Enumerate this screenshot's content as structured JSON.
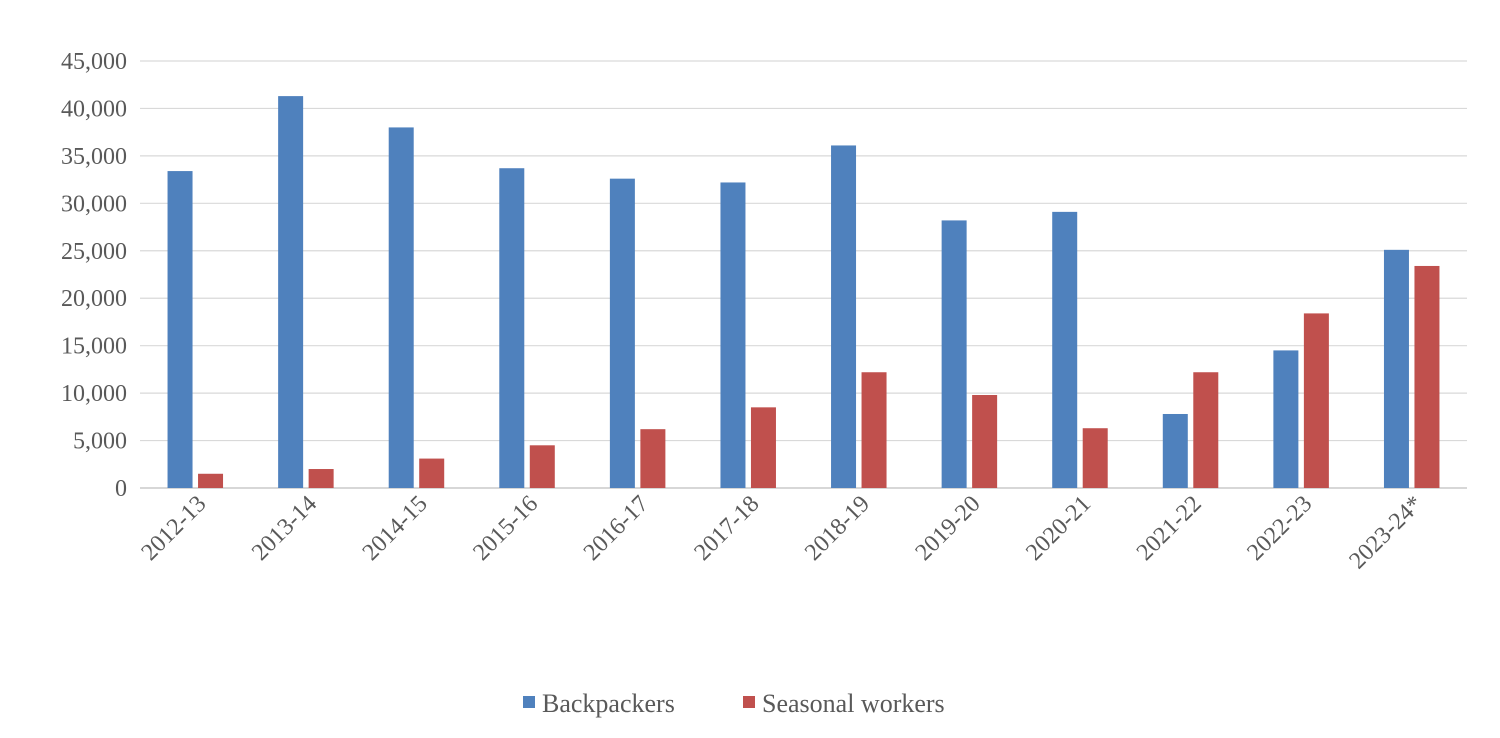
{
  "chart_data": {
    "type": "bar",
    "categories": [
      "2012-13",
      "2013-14",
      "2014-15",
      "2015-16",
      "2016-17",
      "2017-18",
      "2018-19",
      "2019-20",
      "2020-21",
      "2021-22",
      "2022-23",
      "2023-24*"
    ],
    "series": [
      {
        "name": "Backpackers",
        "color": "#4f81bd",
        "values": [
          33400,
          41300,
          38000,
          33700,
          32600,
          32200,
          36100,
          28200,
          29100,
          7800,
          14500,
          25100
        ]
      },
      {
        "name": "Seasonal workers",
        "color": "#c0504d",
        "values": [
          1500,
          2000,
          3100,
          4500,
          6200,
          8500,
          12200,
          9800,
          6300,
          12200,
          18400,
          23400
        ]
      }
    ],
    "y_ticks": [
      "0",
      "5,000",
      "10,000",
      "15,000",
      "20,000",
      "25,000",
      "30,000",
      "35,000",
      "40,000",
      "45,000"
    ],
    "ylim": [
      0,
      45000
    ],
    "title": "",
    "xlabel": "",
    "ylabel": "",
    "grid": true,
    "legend": "bottom-center"
  }
}
